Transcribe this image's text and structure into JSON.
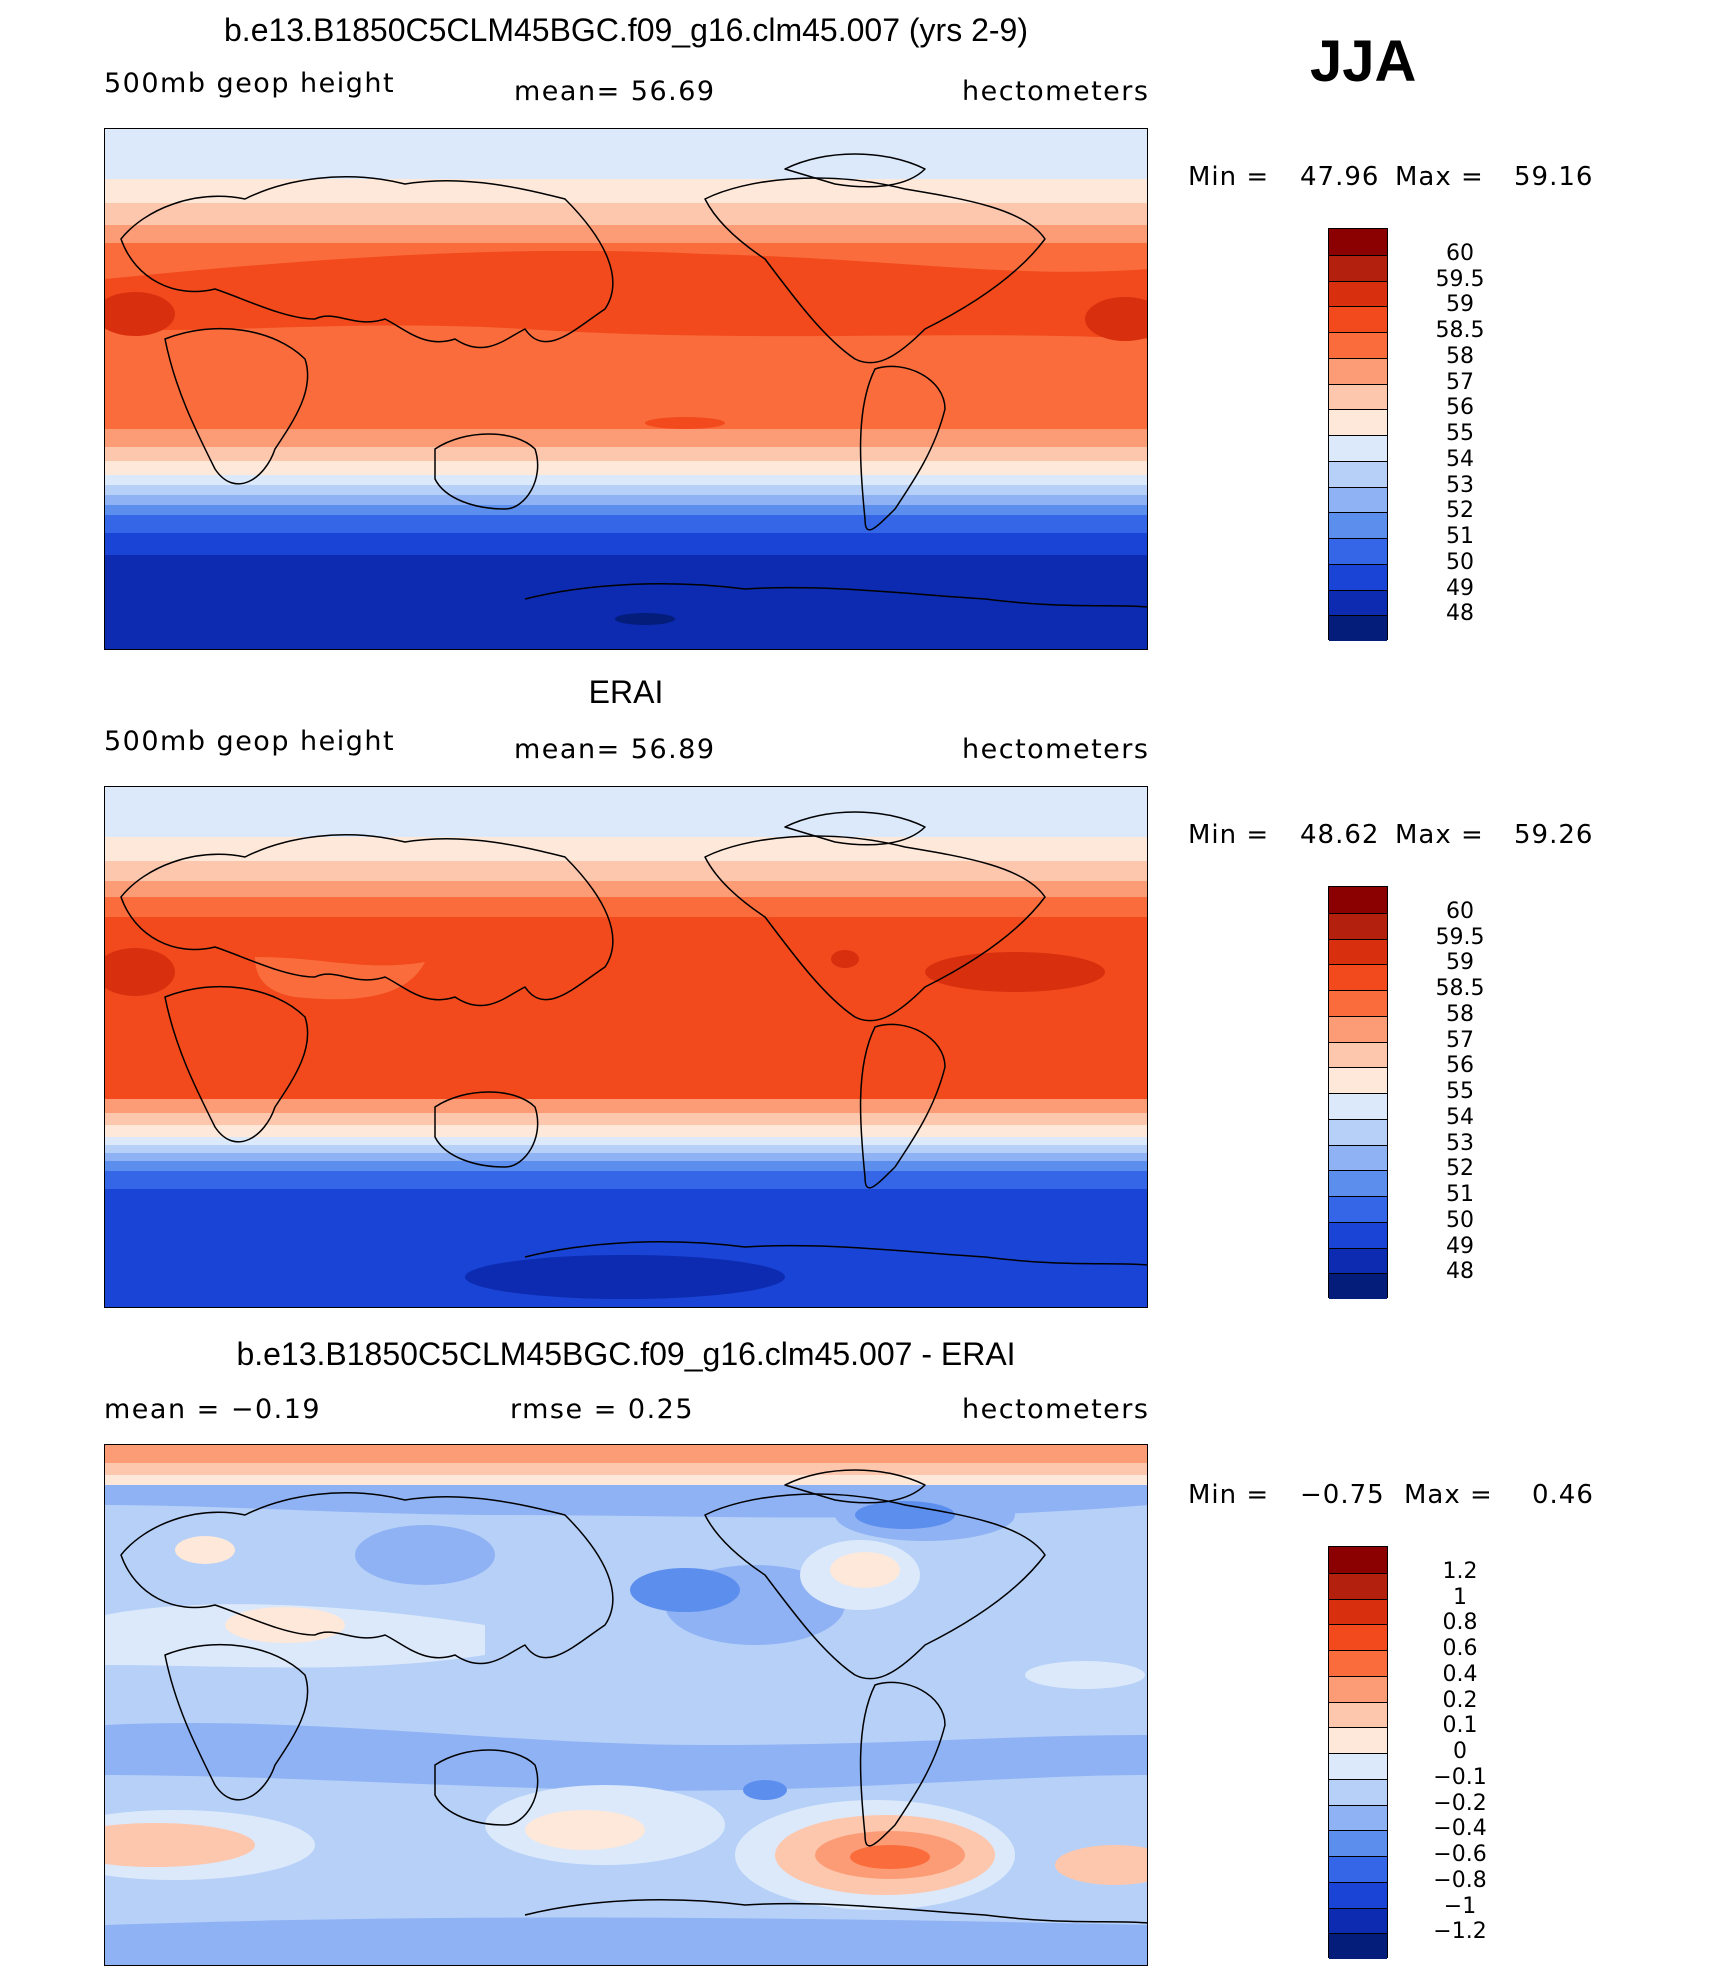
{
  "season": "JJA",
  "panels": [
    {
      "title": "b.e13.B1850C5CLM45BGC.f09_g16.clm45.007 (yrs 2-9)",
      "left_label": "500mb geop height",
      "center_label": "mean=   56.69",
      "right_label": "hectometers",
      "min_label": "Min =",
      "min_value": "47.96",
      "max_label": "Max =",
      "max_value": "59.16",
      "legend_labels": [
        "60",
        "59.5",
        "59",
        "58.5",
        "58",
        "57",
        "56",
        "55",
        "54",
        "53",
        "52",
        "51",
        "50",
        "49",
        "48"
      ],
      "legend_colors": [
        "#8b0000",
        "#b3200e",
        "#d8300f",
        "#f24a1c",
        "#fa6c3c",
        "#fc9c76",
        "#fdc7ae",
        "#fde8da",
        "#dbe9fb",
        "#b6d0f8",
        "#8fb2f4",
        "#5c8eee",
        "#3566e8",
        "#1a44d6",
        "#0c2bb0",
        "#041d7a"
      ]
    },
    {
      "title": "ERAI",
      "left_label": "500mb geop height",
      "center_label": "mean=   56.89",
      "right_label": "hectometers",
      "min_label": "Min =",
      "min_value": "48.62",
      "max_label": "Max =",
      "max_value": "59.26",
      "legend_labels": [
        "60",
        "59.5",
        "59",
        "58.5",
        "58",
        "57",
        "56",
        "55",
        "54",
        "53",
        "52",
        "51",
        "50",
        "49",
        "48"
      ],
      "legend_colors": [
        "#8b0000",
        "#b3200e",
        "#d8300f",
        "#f24a1c",
        "#fa6c3c",
        "#fc9c76",
        "#fdc7ae",
        "#fde8da",
        "#dbe9fb",
        "#b6d0f8",
        "#8fb2f4",
        "#5c8eee",
        "#3566e8",
        "#1a44d6",
        "#0c2bb0",
        "#041d7a"
      ]
    },
    {
      "title": "b.e13.B1850C5CLM45BGC.f09_g16.clm45.007 - ERAI",
      "left_label": "mean =   −0.19",
      "center_label": "rmse =    0.25",
      "right_label": "hectometers",
      "min_label": "Min =",
      "min_value": "−0.75",
      "max_label": "Max =",
      "max_value": "0.46",
      "legend_labels": [
        "1.2",
        "1",
        "0.8",
        "0.6",
        "0.4",
        "0.2",
        "0.1",
        "0",
        "−0.1",
        "−0.2",
        "−0.4",
        "−0.6",
        "−0.8",
        "−1",
        "−1.2"
      ],
      "legend_colors": [
        "#8b0000",
        "#b3200e",
        "#d8300f",
        "#f24a1c",
        "#fa6c3c",
        "#fc9c76",
        "#fdc7ae",
        "#fde8da",
        "#dbe9fb",
        "#b6d0f8",
        "#8fb2f4",
        "#5c8eee",
        "#3566e8",
        "#1a44d6",
        "#0c2bb0",
        "#041d7a"
      ]
    }
  ]
}
